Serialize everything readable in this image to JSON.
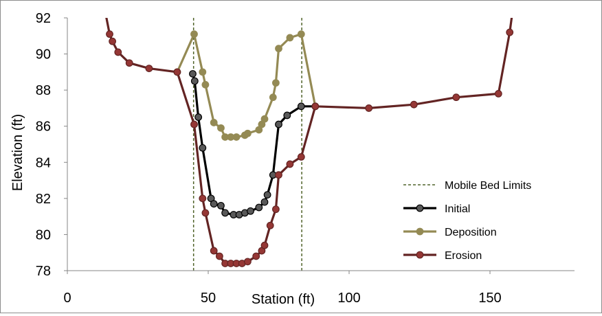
{
  "chart_data": {
    "type": "line",
    "title": "",
    "xlabel": "Station (ft)",
    "ylabel": "Elevation (ft)",
    "xlim": [
      0,
      180
    ],
    "ylim": [
      78,
      92
    ],
    "xticks": [
      0,
      50,
      100,
      150
    ],
    "yticks": [
      78,
      80,
      82,
      84,
      86,
      88,
      90,
      92
    ],
    "grid": false,
    "legend_position": "bottom-right",
    "series": [
      {
        "name": "Mobile Bed Limits",
        "style": "dashed",
        "color": "#4f6228",
        "segments": [
          {
            "x": [
              44.8,
              44.8
            ],
            "y": [
              78,
              92
            ]
          },
          {
            "x": [
              83.2,
              83.2
            ],
            "y": [
              78,
              92
            ]
          }
        ]
      },
      {
        "name": "Initial",
        "color": "#000000",
        "marker_color": "#595959",
        "x": [
          44.5,
          45.2,
          46.5,
          48,
          51,
          52,
          54.5,
          56,
          59,
          61,
          63,
          65,
          68,
          70,
          71,
          73,
          75,
          78,
          83,
          88
        ],
        "y": [
          88.9,
          88.5,
          86.5,
          84.8,
          82.0,
          81.7,
          81.6,
          81.2,
          81.1,
          81.1,
          81.2,
          81.3,
          81.5,
          81.8,
          82.2,
          83.3,
          86.1,
          86.6,
          87.1,
          87.1
        ]
      },
      {
        "name": "Deposition",
        "color": "#948a54",
        "marker_color": "#948a54",
        "x": [
          39,
          45,
          48,
          49,
          52,
          54.5,
          56,
          58,
          60,
          63,
          64,
          68,
          69,
          70,
          73,
          74,
          75,
          79,
          83,
          88
        ],
        "y": [
          89.0,
          91.1,
          89.0,
          88.3,
          86.2,
          85.9,
          85.4,
          85.4,
          85.4,
          85.5,
          85.6,
          85.8,
          86.1,
          86.4,
          87.6,
          88.4,
          90.3,
          90.9,
          91.1,
          87.1
        ]
      },
      {
        "name": "Erosion",
        "color": "#632423",
        "marker_color": "#953735",
        "x": [
          12,
          15,
          16,
          18,
          22,
          29,
          39,
          45,
          48,
          49,
          52,
          54,
          56,
          58,
          60,
          62,
          64,
          67,
          69,
          70,
          72,
          74,
          75,
          79,
          83,
          88,
          107,
          123,
          138,
          153,
          157,
          159
        ],
        "y": [
          93.5,
          91.1,
          90.7,
          90.1,
          89.5,
          89.2,
          89.0,
          86.1,
          82.0,
          81.2,
          79.1,
          78.8,
          78.4,
          78.4,
          78.4,
          78.4,
          78.5,
          78.8,
          79.1,
          79.4,
          80.5,
          81.4,
          83.3,
          83.9,
          84.3,
          87.1,
          87.0,
          87.2,
          87.6,
          87.8,
          91.2,
          93.5
        ]
      }
    ]
  }
}
